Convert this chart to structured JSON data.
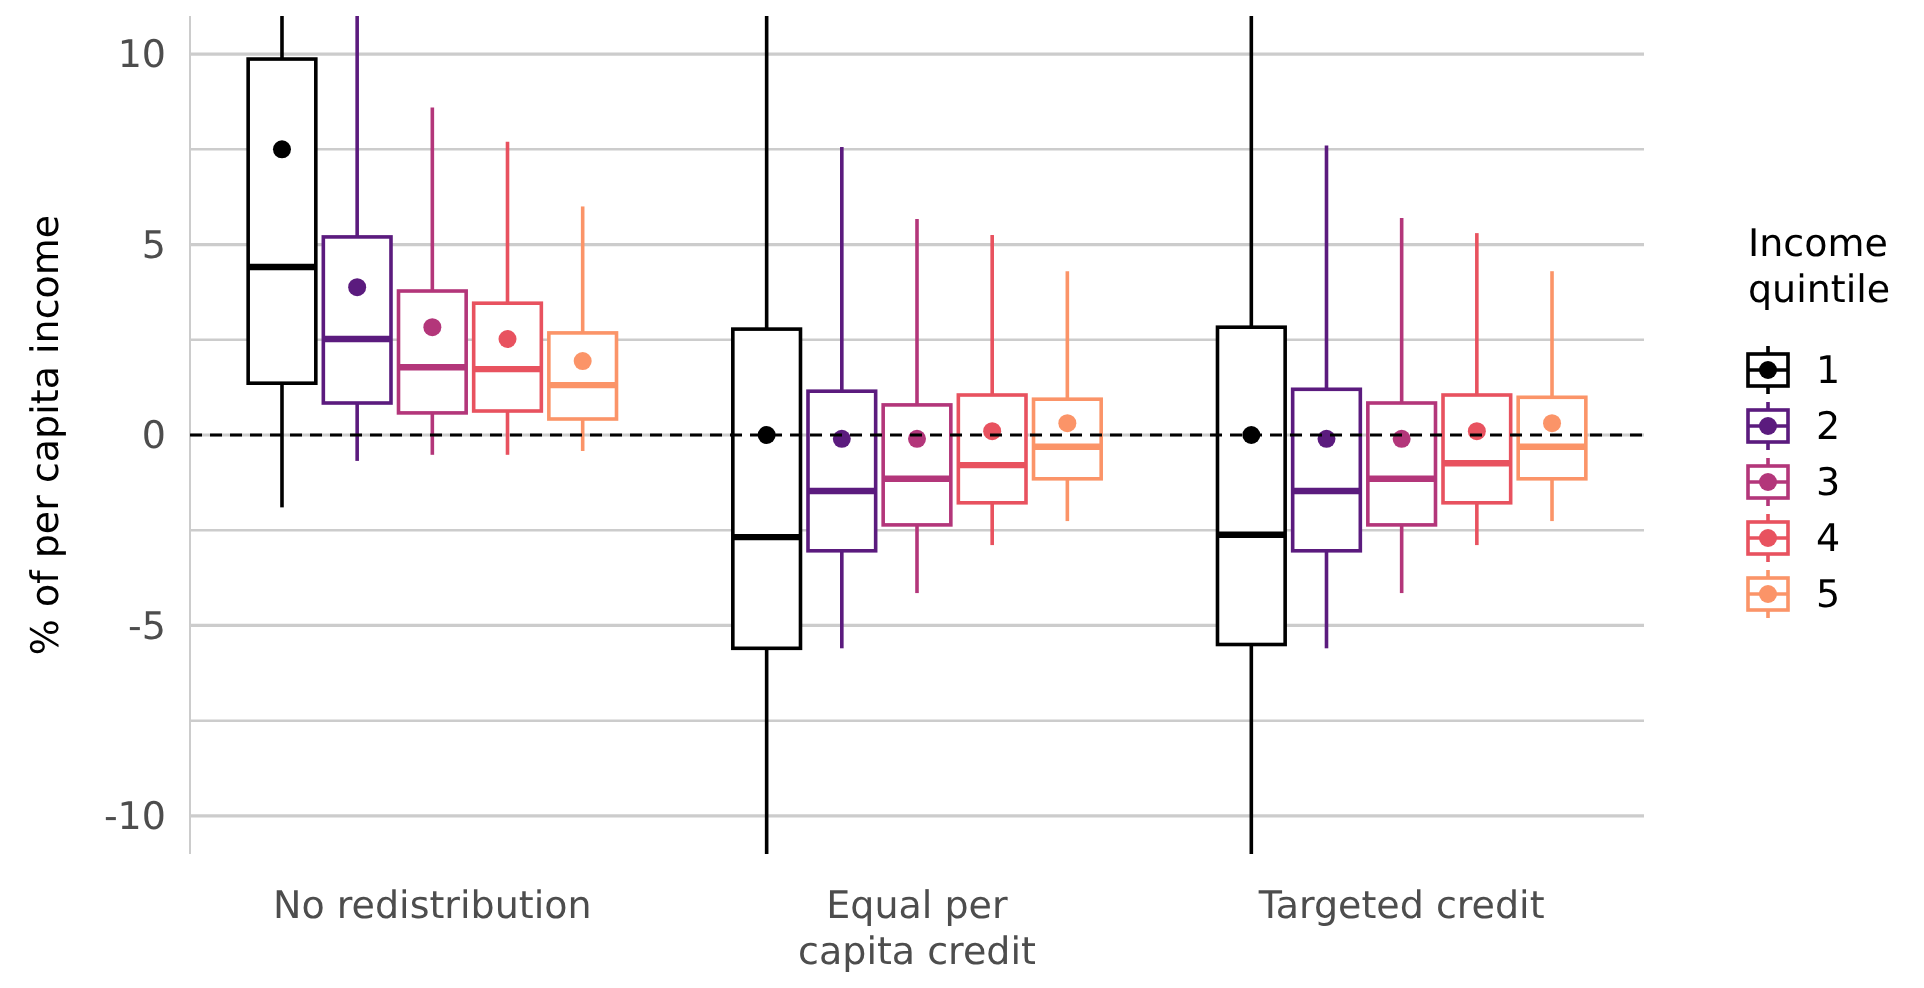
{
  "chart_data": {
    "type": "box",
    "ylabel": "% of per capita income",
    "legend_title": "Income\nquintile",
    "categories": [
      "No redistribution",
      "Equal per\ncapita credit",
      "Targeted credit"
    ],
    "ylim": [
      -11,
      11
    ],
    "yticks": [
      {
        "value": -10,
        "label": "-10"
      },
      {
        "value": -7.5,
        "label": null
      },
      {
        "value": -5,
        "label": "-5"
      },
      {
        "value": -2.5,
        "label": null
      },
      0,
      {
        "value": 2.5,
        "label": null
      },
      5,
      {
        "value": 7.5,
        "label": null
      },
      10
    ],
    "grid": "y",
    "legend": "right",
    "ref_lines": [
      {
        "axis": "y",
        "value": 0,
        "line_style": "dashed",
        "color": "#000000"
      }
    ],
    "series": [
      {
        "name": "1",
        "color": "#000000",
        "boxes": [
          {
            "low": -1.9,
            "q1": 1.36,
            "median": 4.41,
            "q3": 9.87,
            "high": 11,
            "mean": 7.5
          },
          {
            "low": -11,
            "q1": -5.6,
            "median": -2.68,
            "q3": 2.78,
            "high": 11,
            "mean": 0
          },
          {
            "low": -11,
            "q1": -5.5,
            "median": -2.62,
            "q3": 2.83,
            "high": 11,
            "mean": 0
          }
        ]
      },
      {
        "name": "2",
        "color": "#5b1b7e",
        "boxes": [
          {
            "low": -0.68,
            "q1": 0.84,
            "median": 2.52,
            "q3": 5.2,
            "high": 11,
            "mean": 3.88
          },
          {
            "low": -5.6,
            "q1": -3.04,
            "median": -1.47,
            "q3": 1.15,
            "high": 7.56,
            "mean": -0.1
          },
          {
            "low": -5.6,
            "q1": -3.04,
            "median": -1.47,
            "q3": 1.2,
            "high": 7.6,
            "mean": -0.1
          }
        ]
      },
      {
        "name": "3",
        "color": "#b3367a",
        "boxes": [
          {
            "low": -0.52,
            "q1": 0.58,
            "median": 1.78,
            "q3": 3.78,
            "high": 8.6,
            "mean": 2.83
          },
          {
            "low": -4.15,
            "q1": -2.36,
            "median": -1.15,
            "q3": 0.79,
            "high": 5.67,
            "mean": -0.1
          },
          {
            "low": -4.15,
            "q1": -2.36,
            "median": -1.15,
            "q3": 0.84,
            "high": 5.7,
            "mean": -0.1
          }
        ]
      },
      {
        "name": "4",
        "color": "#e8525f",
        "boxes": [
          {
            "low": -0.52,
            "q1": 0.63,
            "median": 1.73,
            "q3": 3.46,
            "high": 7.7,
            "mean": 2.52
          },
          {
            "low": -2.89,
            "q1": -1.78,
            "median": -0.79,
            "q3": 1.05,
            "high": 5.25,
            "mean": 0.1
          },
          {
            "low": -2.89,
            "q1": -1.78,
            "median": -0.74,
            "q3": 1.05,
            "high": 5.3,
            "mean": 0.1
          }
        ]
      },
      {
        "name": "5",
        "color": "#fb9468",
        "boxes": [
          {
            "low": -0.42,
            "q1": 0.42,
            "median": 1.31,
            "q3": 2.68,
            "high": 6.0,
            "mean": 1.94
          },
          {
            "low": -2.26,
            "q1": -1.15,
            "median": -0.31,
            "q3": 0.94,
            "high": 4.3,
            "mean": 0.31
          },
          {
            "low": -2.26,
            "q1": -1.15,
            "median": -0.31,
            "q3": 0.99,
            "high": 4.3,
            "mean": 0.31
          }
        ]
      }
    ]
  }
}
